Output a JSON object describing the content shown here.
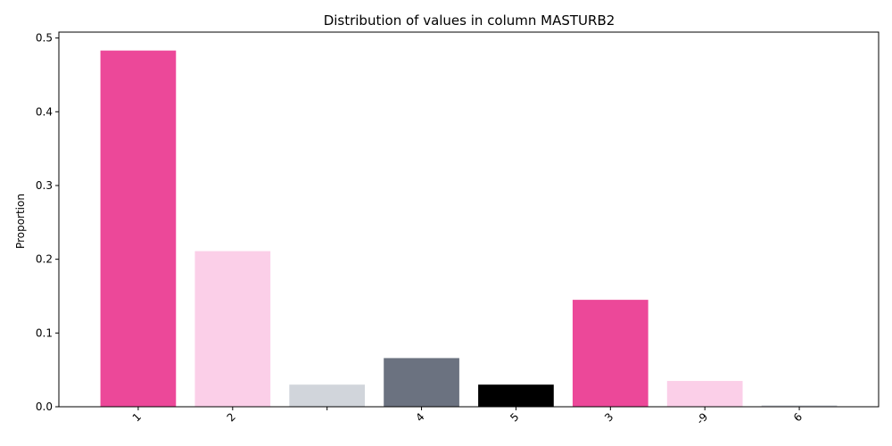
{
  "chart_data": {
    "type": "bar",
    "title": "Distribution of values in column MASTURB2",
    "xlabel": "",
    "ylabel": "Proportion",
    "categories": [
      "1",
      "2",
      "",
      "4",
      "5",
      "3",
      "-9",
      "6"
    ],
    "values": [
      0.483,
      0.211,
      0.03,
      0.066,
      0.03,
      0.145,
      0.035,
      0.002
    ],
    "colors": [
      "#ec4899",
      "#fbcfe8",
      "#d1d5db",
      "#6b7280",
      "#000000",
      "#ec4899",
      "#fbcfe8",
      "#d1d5db"
    ],
    "ylim": [
      0,
      0.508
    ],
    "yticks": [
      0.0,
      0.1,
      0.2,
      0.3,
      0.4,
      0.5
    ],
    "ytick_labels": [
      "0.0",
      "0.1",
      "0.2",
      "0.3",
      "0.4",
      "0.5"
    ],
    "grid": false,
    "legend": "none"
  }
}
